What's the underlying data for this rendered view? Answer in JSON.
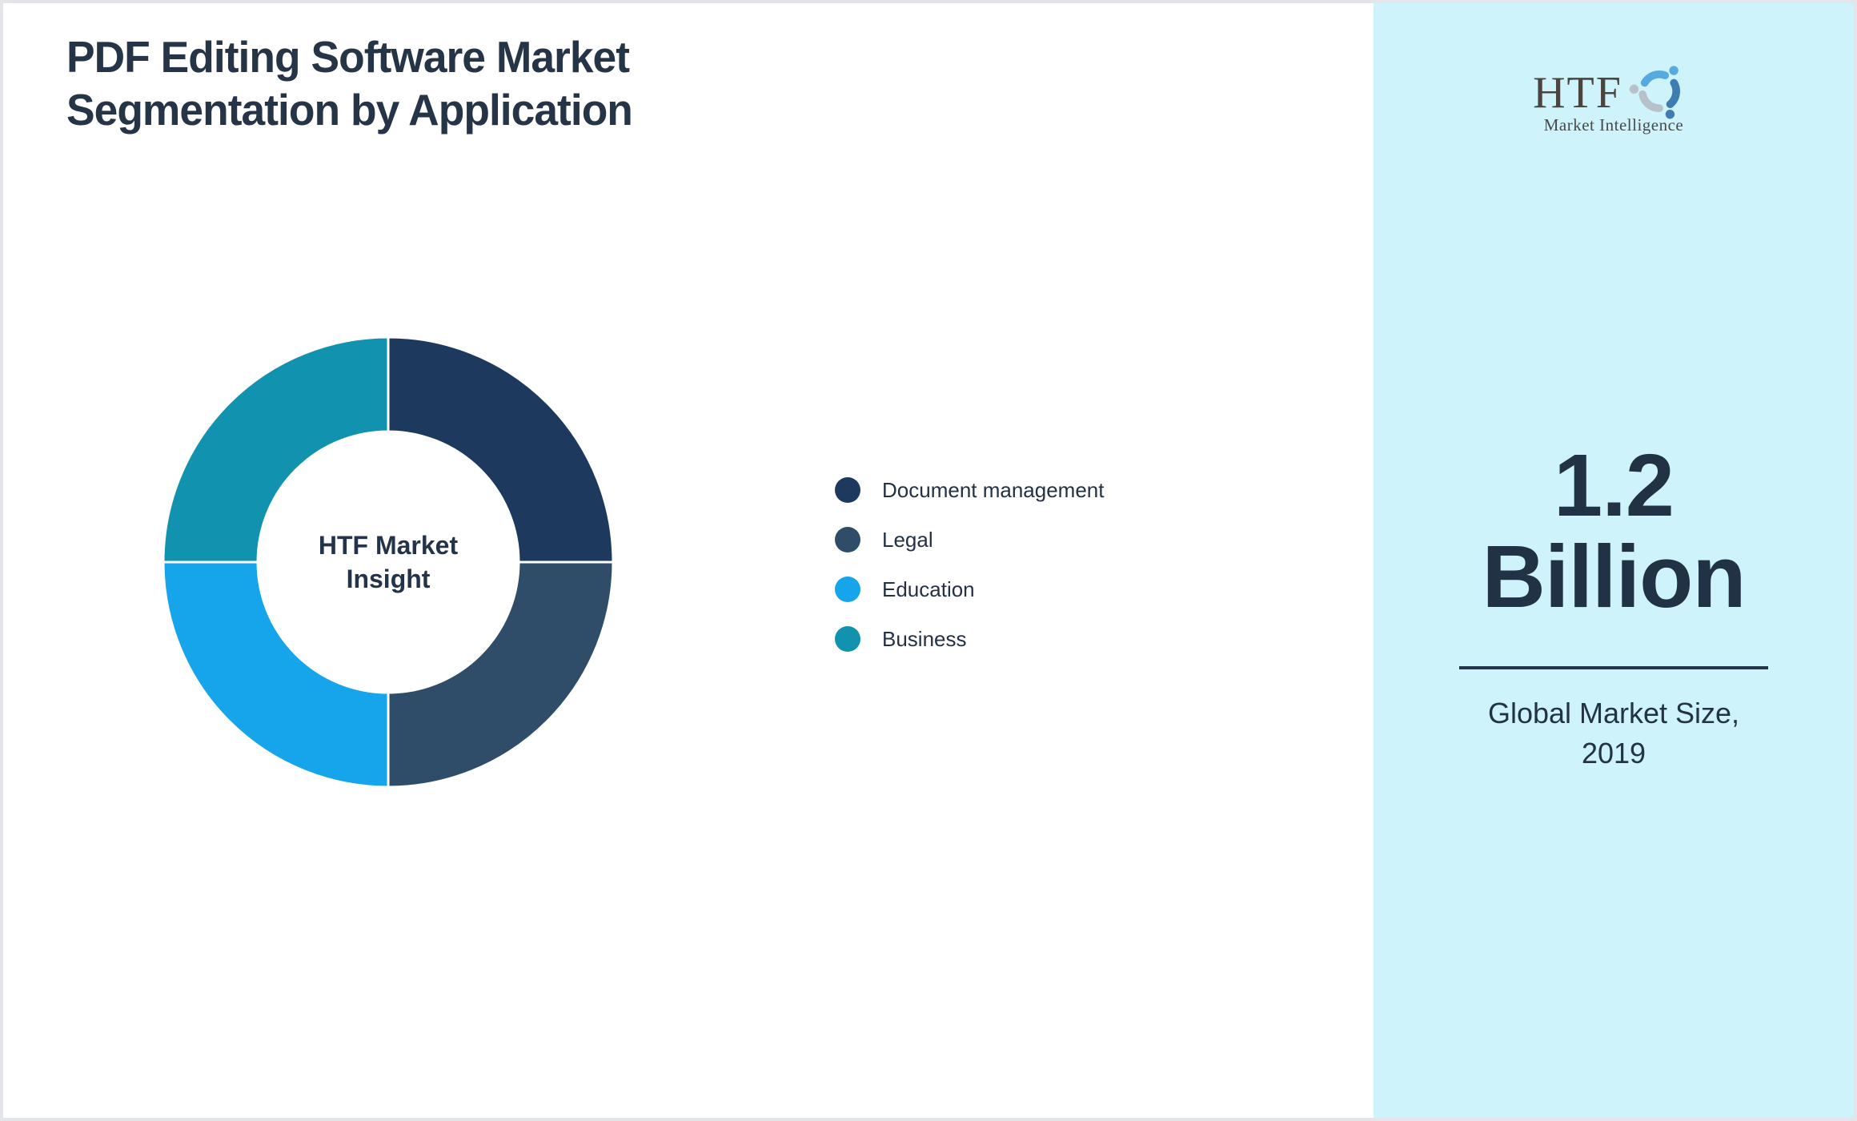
{
  "page": {
    "background": "#ffffff",
    "border_color": "#e3e5e9"
  },
  "header": {
    "title_line1": "PDF Editing Software Market",
    "title_line2": "Segmentation by Application",
    "title_color": "#263447"
  },
  "chart_data": {
    "type": "pie",
    "subtype": "donut",
    "title": "PDF Editing Software Market Segmentation by Application",
    "center_label_line1": "HTF Market",
    "center_label_line2": "Insight",
    "start_angle_deg": -90,
    "direction": "clockwise",
    "hole_ratio": 0.58,
    "legend_position": "right",
    "separator_color": "#ffffff",
    "segments": [
      {
        "label": "Document management",
        "value": 25,
        "color": "#1d3a5e"
      },
      {
        "label": "Legal",
        "value": 25,
        "color": "#2f4c69"
      },
      {
        "label": "Education",
        "value": 25,
        "color": "#16a5eb"
      },
      {
        "label": "Business",
        "value": 25,
        "color": "#1193b0"
      }
    ]
  },
  "sidebar": {
    "background": "#cef3fb",
    "logo": {
      "text": "HTF",
      "subtext": "Market Intelligence",
      "text_color": "#4a453e",
      "icon_colors": [
        "#56aadf",
        "#3e7cb1",
        "#b6c1cb"
      ]
    },
    "stat": {
      "value_line1": "1.2",
      "value_line2": "Billion",
      "caption_line1": "Global Market Size,",
      "caption_line2": "2019",
      "text_color": "#213245"
    }
  }
}
